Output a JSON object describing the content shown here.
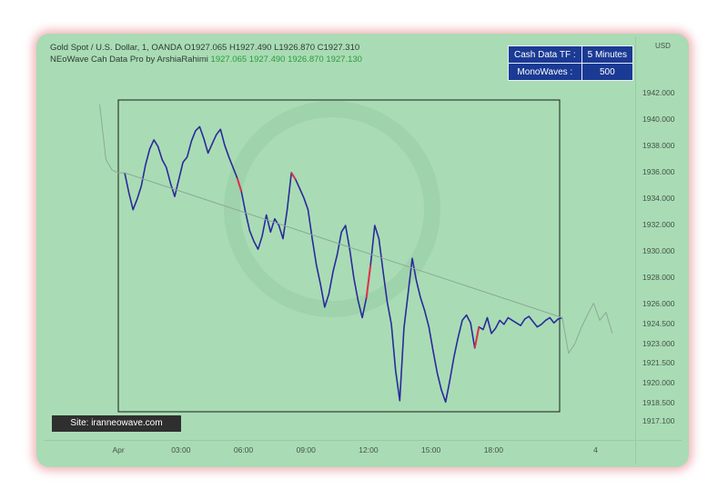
{
  "legend": {
    "symbol": "Gold Spot / U.S. Dollar, 1, OANDA",
    "ohlc": {
      "o": "O1927.065",
      "h": "H1927.490",
      "l": "L1926.870",
      "c": "C1927.310"
    },
    "indicator": "NEoWave Cah Data Pro by ArshiaRahimi",
    "indicator_values": [
      "1927.065",
      "1927.490",
      "1926.870",
      "1927.130"
    ]
  },
  "info_table": {
    "cash_label": "Cash Data TF :",
    "cash_value": "5 Minutes",
    "mono_label": "MonoWaves :",
    "mono_value": "500"
  },
  "site_label": "Site: iranneowave.com",
  "currency": "USD",
  "colors": {
    "background": "#a9dcb4",
    "cash_line": "#2a2a9c",
    "highlight": "#e0304a",
    "gray_line": "#8ea898"
  },
  "chart_data": {
    "type": "line",
    "title": "Gold Spot / U.S. Dollar, 1, OANDA",
    "ylim": [
      1917.1,
      1943.6
    ],
    "y_ticks": [
      "1942.000",
      "1940.000",
      "1938.000",
      "1936.000",
      "1934.000",
      "1932.000",
      "1930.000",
      "1928.000",
      "1926.000",
      "1924.500",
      "1923.000",
      "1921.500",
      "1920.000",
      "1918.500",
      "1917.100"
    ],
    "x_ticks": [
      "Apr",
      "03:00",
      "06:00",
      "09:00",
      "12:00",
      "15:00",
      "18:00",
      "4"
    ],
    "series": [
      {
        "name": "NEoWave Cah Data Pro",
        "x_hours": [
          0,
          0.2,
          0.4,
          0.6,
          0.8,
          1.0,
          1.2,
          1.4,
          1.6,
          1.8,
          2.0,
          2.2,
          2.4,
          2.6,
          2.8,
          3.0,
          3.2,
          3.4,
          3.6,
          3.8,
          4.0,
          4.2,
          4.4,
          4.6,
          4.8,
          5.0,
          5.2,
          5.4,
          5.6,
          5.8,
          6.0,
          6.2,
          6.4,
          6.6,
          6.8,
          7.0,
          7.2,
          7.4,
          7.6,
          7.8,
          8.0,
          8.2,
          8.4,
          8.6,
          8.8,
          9.0,
          9.2,
          9.4,
          9.6,
          9.8,
          10.0,
          10.2,
          10.4,
          10.6,
          10.8,
          11.0,
          11.2,
          11.4,
          11.6,
          11.8,
          12.0,
          12.2,
          12.4,
          12.6,
          12.8,
          13.0,
          13.2,
          13.4,
          13.6,
          13.8,
          14.0,
          14.2,
          14.4,
          14.6,
          14.8,
          15.0,
          15.2,
          15.4,
          15.6,
          15.8,
          16.0,
          16.2,
          16.4,
          16.6,
          16.8,
          17.0,
          17.2,
          17.4,
          17.6,
          17.8,
          18.0,
          18.2,
          18.4,
          18.6,
          18.8,
          19.0,
          19.2,
          19.4,
          19.6,
          19.8,
          20.0,
          20.2,
          20.4,
          20.6,
          20.8,
          21.0
        ],
        "values": [
          1936.0,
          1934.5,
          1933.2,
          1934.0,
          1935.0,
          1936.6,
          1937.8,
          1938.5,
          1938.0,
          1937.0,
          1936.4,
          1935.2,
          1934.2,
          1935.5,
          1936.8,
          1937.2,
          1938.4,
          1939.2,
          1939.5,
          1938.6,
          1937.5,
          1938.2,
          1938.9,
          1939.3,
          1938.1,
          1937.2,
          1936.4,
          1935.6,
          1934.6,
          1933.0,
          1931.6,
          1930.8,
          1930.2,
          1931.2,
          1932.8,
          1931.5,
          1932.5,
          1932.0,
          1931.0,
          1933.2,
          1936.0,
          1935.5,
          1934.8,
          1934.1,
          1933.2,
          1931.0,
          1929.0,
          1927.5,
          1925.8,
          1926.8,
          1928.5,
          1929.8,
          1931.5,
          1932.0,
          1930.2,
          1928.0,
          1926.3,
          1925.0,
          1926.5,
          1929.0,
          1932.0,
          1931.0,
          1928.5,
          1926.2,
          1924.5,
          1921.0,
          1918.7,
          1924.2,
          1926.8,
          1929.5,
          1927.8,
          1926.5,
          1925.5,
          1924.3,
          1922.5,
          1920.8,
          1919.5,
          1918.6,
          1920.2,
          1922.0,
          1923.5,
          1924.8,
          1925.2,
          1924.6,
          1922.7,
          1924.3,
          1924.1,
          1925.0,
          1923.8,
          1924.2,
          1924.8,
          1924.5,
          1925.0,
          1924.8,
          1924.6,
          1924.4,
          1924.9,
          1925.1,
          1924.7,
          1924.3,
          1924.5,
          1924.8,
          1925.0,
          1924.6,
          1924.9,
          1925.0
        ]
      },
      {
        "name": "Gold Spot / U.S. Dollar",
        "x_hours": [
          -1.2,
          -0.9,
          -0.6,
          -0.3,
          0.0,
          21.0,
          21.3,
          21.6,
          21.9,
          22.2,
          22.5,
          22.8,
          23.1,
          23.4
        ],
        "values": [
          1941.2,
          1937.0,
          1936.2,
          1936.0,
          1936.0,
          1925.0,
          1922.3,
          1923.0,
          1924.2,
          1925.2,
          1926.1,
          1924.8,
          1925.4,
          1923.8
        ]
      }
    ]
  }
}
